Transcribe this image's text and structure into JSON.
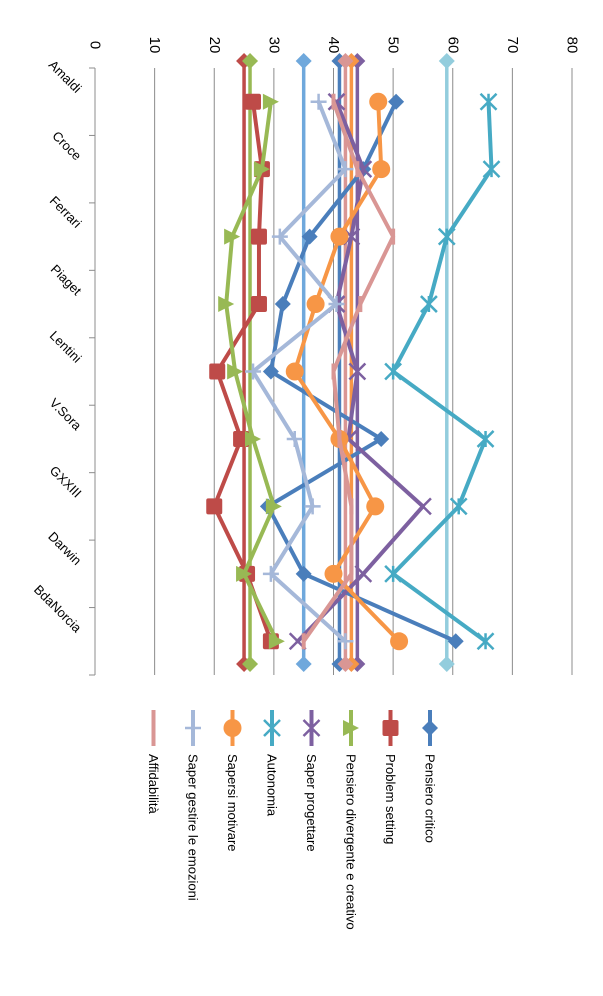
{
  "chart_data": {
    "type": "line",
    "categories": [
      "Amaldi",
      "Croce",
      "Ferrari",
      "Piaget",
      "Lentini",
      "V.Sora",
      "GXXIII",
      "Darwin",
      "BdaNorcia"
    ],
    "ylim": [
      0,
      80
    ],
    "ticks": [
      0,
      10,
      20,
      30,
      40,
      50,
      60,
      70,
      80
    ],
    "grid": true,
    "legend_position": "bottom",
    "series": [
      {
        "name": "Pensiero critico",
        "color": "#4a7ebb",
        "marker": "diamond",
        "values": [
          50.5,
          45,
          36,
          31.5,
          29.5,
          48,
          29,
          35,
          60.5
        ],
        "avg": 41
      },
      {
        "name": "Problem setting",
        "color": "#be4b48",
        "marker": "square",
        "values": [
          26.5,
          28,
          27.5,
          27.5,
          20.5,
          24.5,
          20,
          25.5,
          29.5
        ],
        "avg": 25
      },
      {
        "name": "Pensiero divergente e creativo",
        "color": "#98b954",
        "marker": "triangle",
        "values": [
          29.5,
          28,
          23,
          22,
          23.5,
          26.5,
          30,
          25,
          30.5
        ],
        "avg": 26
      },
      {
        "name": "Saper progettare",
        "color": "#7d60a0",
        "marker": "x",
        "values": [
          40.5,
          45,
          43,
          40.5,
          44,
          42.5,
          55,
          45,
          34
        ],
        "avg": 44
      },
      {
        "name": "Autonomia",
        "color": "#46aac4",
        "marker": "star",
        "values": [
          66,
          66.5,
          59,
          56,
          50,
          65.5,
          61,
          50,
          65.5
        ],
        "avg": 59
      },
      {
        "name": "Sapersi motivare",
        "color": "#f79646",
        "marker": "circle",
        "values": [
          47.5,
          48,
          41,
          37,
          33.5,
          41,
          47,
          40,
          51
        ],
        "avg": 43
      },
      {
        "name": "Saper gestire le emozioni",
        "color": "#a5b8d9",
        "marker": "plus",
        "values": [
          37.5,
          42,
          31,
          40.5,
          26.5,
          33.5,
          36.5,
          29.5,
          42
        ],
        "avg": 35
      },
      {
        "name": "Affidabilità",
        "color": "#d99694",
        "marker": "dash",
        "values": [
          40,
          44,
          50,
          44.5,
          40,
          41,
          43,
          43,
          35
        ],
        "avg": 42
      }
    ],
    "avg_line_colors": [
      "#4a7ebb",
      "#be4b48",
      "#98b954",
      "#7d60a0",
      "#93cddd",
      "#f79646",
      "#6fa8dc",
      "#d99694"
    ]
  }
}
